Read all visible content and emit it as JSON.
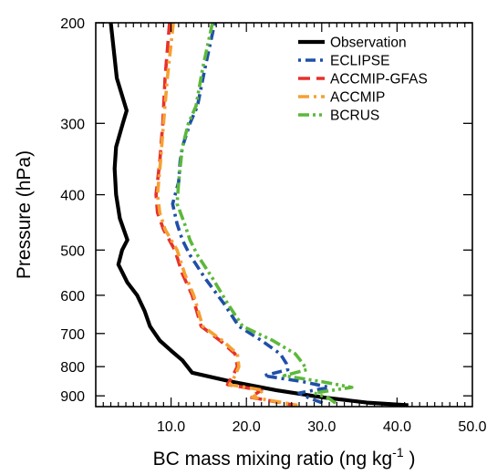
{
  "chart_data": {
    "type": "line",
    "xlabel": "BC mass mixing ratio (ng kg",
    "xlabel_sup": "-1",
    "xlabel_end": " )",
    "ylabel": "Pressure (hPa)",
    "xlim": [
      0,
      50
    ],
    "ylim": [
      940,
      200
    ],
    "y_scale": "log",
    "x_ticks": [
      10,
      20,
      30,
      40,
      50
    ],
    "x_tick_labels": [
      "10.0",
      "20.0",
      "30.0",
      "40.0",
      "50.0"
    ],
    "y_ticks": [
      200,
      300,
      400,
      500,
      600,
      700,
      800,
      900
    ],
    "y_tick_labels": [
      "200",
      "300",
      "400",
      "500",
      "600",
      "700",
      "800",
      "900"
    ],
    "legend_position": "top-right",
    "grid": false,
    "series": [
      {
        "name": "Observation",
        "color": "#000000",
        "dash": "solid",
        "points": [
          [
            2.0,
            200
          ],
          [
            2.8,
            250
          ],
          [
            4.1,
            285
          ],
          [
            3.6,
            300
          ],
          [
            2.7,
            330
          ],
          [
            2.5,
            360
          ],
          [
            2.7,
            400
          ],
          [
            3.2,
            440
          ],
          [
            4.2,
            480
          ],
          [
            3.5,
            500
          ],
          [
            3.0,
            530
          ],
          [
            4.2,
            570
          ],
          [
            5.5,
            600
          ],
          [
            6.5,
            640
          ],
          [
            7.2,
            680
          ],
          [
            8.5,
            720
          ],
          [
            10.0,
            750
          ],
          [
            11.5,
            780
          ],
          [
            12.8,
            820
          ],
          [
            18.0,
            850
          ],
          [
            24.0,
            880
          ],
          [
            30.0,
            905
          ],
          [
            36.0,
            925
          ],
          [
            41.5,
            935
          ]
        ]
      },
      {
        "name": "ECLIPSE",
        "color": "#1f4fa8",
        "dash": "dot-dash",
        "points": [
          [
            15.8,
            200
          ],
          [
            14.5,
            240
          ],
          [
            13.5,
            280
          ],
          [
            12.5,
            300
          ],
          [
            11.5,
            330
          ],
          [
            11.2,
            350
          ],
          [
            11.0,
            380
          ],
          [
            10.2,
            415
          ],
          [
            10.8,
            450
          ],
          [
            11.5,
            480
          ],
          [
            12.5,
            510
          ],
          [
            14.5,
            560
          ],
          [
            17.0,
            620
          ],
          [
            19.0,
            680
          ],
          [
            22.0,
            720
          ],
          [
            24.5,
            760
          ],
          [
            25.3,
            790
          ],
          [
            25.5,
            810
          ],
          [
            22.3,
            830
          ],
          [
            27.5,
            850
          ],
          [
            31.0,
            870
          ],
          [
            27.0,
            890
          ],
          [
            28.5,
            910
          ],
          [
            30.5,
            930
          ]
        ]
      },
      {
        "name": "ACCMIP-GFAS",
        "color": "#e8302a",
        "dash": "dash",
        "points": [
          [
            9.8,
            200
          ],
          [
            9.2,
            250
          ],
          [
            8.9,
            300
          ],
          [
            8.5,
            350
          ],
          [
            8.0,
            400
          ],
          [
            8.2,
            430
          ],
          [
            9.0,
            460
          ],
          [
            10.5,
            500
          ],
          [
            11.5,
            550
          ],
          [
            12.8,
            600
          ],
          [
            14.0,
            680
          ],
          [
            16.5,
            720
          ],
          [
            18.5,
            760
          ],
          [
            18.8,
            800
          ],
          [
            18.2,
            830
          ],
          [
            17.5,
            860
          ],
          [
            22.0,
            880
          ],
          [
            20.5,
            905
          ],
          [
            24.5,
            925
          ],
          [
            26.5,
            935
          ]
        ]
      },
      {
        "name": "ACCMIP",
        "color": "#f5a032",
        "dash": "dash-dot",
        "points": [
          [
            10.3,
            200
          ],
          [
            9.5,
            250
          ],
          [
            9.0,
            300
          ],
          [
            8.6,
            350
          ],
          [
            8.2,
            400
          ],
          [
            8.5,
            430
          ],
          [
            9.2,
            460
          ],
          [
            10.8,
            500
          ],
          [
            11.8,
            550
          ],
          [
            13.0,
            600
          ],
          [
            14.2,
            680
          ],
          [
            16.8,
            720
          ],
          [
            18.8,
            760
          ],
          [
            19.0,
            800
          ],
          [
            18.5,
            830
          ],
          [
            17.8,
            860
          ],
          [
            22.3,
            880
          ],
          [
            20.8,
            905
          ],
          [
            24.8,
            925
          ],
          [
            26.8,
            935
          ]
        ]
      },
      {
        "name": "BCRUS",
        "color": "#5cb83a",
        "dash": "dash-dot-dot",
        "points": [
          [
            15.5,
            200
          ],
          [
            14.2,
            240
          ],
          [
            13.3,
            280
          ],
          [
            12.3,
            300
          ],
          [
            11.5,
            330
          ],
          [
            11.3,
            350
          ],
          [
            11.0,
            380
          ],
          [
            10.8,
            415
          ],
          [
            11.8,
            450
          ],
          [
            12.5,
            480
          ],
          [
            13.5,
            510
          ],
          [
            15.5,
            560
          ],
          [
            17.5,
            620
          ],
          [
            19.5,
            680
          ],
          [
            23.5,
            720
          ],
          [
            26.5,
            760
          ],
          [
            27.5,
            790
          ],
          [
            28.0,
            810
          ],
          [
            25.0,
            830
          ],
          [
            30.0,
            850
          ],
          [
            34.0,
            870
          ],
          [
            29.0,
            890
          ],
          [
            31.0,
            910
          ],
          [
            32.0,
            930
          ]
        ]
      }
    ]
  }
}
